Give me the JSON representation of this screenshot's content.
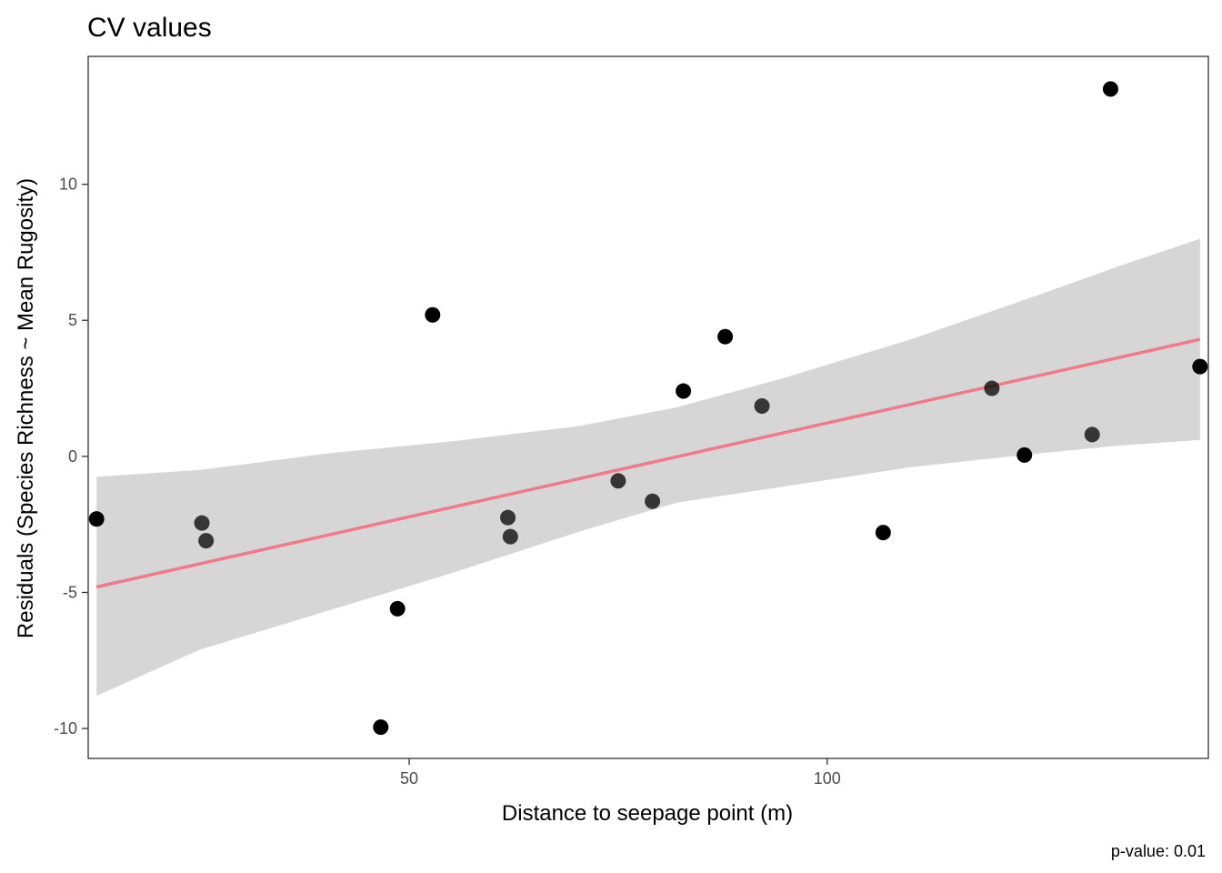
{
  "chart_data": {
    "type": "scatter",
    "title": "CV values",
    "xlabel": "Distance to seepage point (m)",
    "ylabel": "Residuals (Species Richness ~ Mean Rugosity)",
    "caption": "p-value: 0.01",
    "xlim": [
      11.6,
      145.6
    ],
    "ylim": [
      -11.1,
      14.7
    ],
    "x_ticks": [
      50,
      100
    ],
    "y_ticks": [
      -10,
      -5,
      0,
      5,
      10
    ],
    "grid": false,
    "points": [
      {
        "x": 12.6,
        "y": -2.3,
        "alpha": 1.0
      },
      {
        "x": 25.2,
        "y": -2.45,
        "alpha": 0.75
      },
      {
        "x": 25.7,
        "y": -3.1,
        "alpha": 0.75
      },
      {
        "x": 46.6,
        "y": -9.95,
        "alpha": 1.0
      },
      {
        "x": 48.6,
        "y": -5.6,
        "alpha": 1.0
      },
      {
        "x": 52.8,
        "y": 5.2,
        "alpha": 1.0
      },
      {
        "x": 61.8,
        "y": -2.25,
        "alpha": 0.75
      },
      {
        "x": 62.1,
        "y": -2.95,
        "alpha": 0.75
      },
      {
        "x": 75.0,
        "y": -0.9,
        "alpha": 0.75
      },
      {
        "x": 79.1,
        "y": -1.65,
        "alpha": 0.75
      },
      {
        "x": 82.8,
        "y": 2.4,
        "alpha": 1.0
      },
      {
        "x": 87.8,
        "y": 4.4,
        "alpha": 1.0
      },
      {
        "x": 92.2,
        "y": 1.85,
        "alpha": 0.75
      },
      {
        "x": 106.7,
        "y": -2.8,
        "alpha": 1.0
      },
      {
        "x": 119.7,
        "y": 2.5,
        "alpha": 0.75
      },
      {
        "x": 123.6,
        "y": 0.05,
        "alpha": 1.0
      },
      {
        "x": 131.7,
        "y": 0.8,
        "alpha": 0.75
      },
      {
        "x": 133.9,
        "y": 13.5,
        "alpha": 1.0
      },
      {
        "x": 144.6,
        "y": 3.3,
        "alpha": 1.0
      }
    ],
    "fit_line": {
      "x": [
        12.6,
        144.6
      ],
      "y": [
        -4.8,
        4.3
      ],
      "color": "#f07a89"
    },
    "confidence_band": {
      "x": [
        12.6,
        25,
        40,
        55,
        70,
        82,
        95,
        110,
        125,
        135,
        144.6
      ],
      "upper": [
        -0.75,
        -0.5,
        0.1,
        0.55,
        1.1,
        1.8,
        2.9,
        4.3,
        5.9,
        7.0,
        8.0
      ],
      "lower": [
        -8.8,
        -7.1,
        -5.7,
        -4.3,
        -2.8,
        -1.7,
        -1.1,
        -0.4,
        0.1,
        0.4,
        0.6
      ],
      "color": "#d6d6d6"
    }
  }
}
